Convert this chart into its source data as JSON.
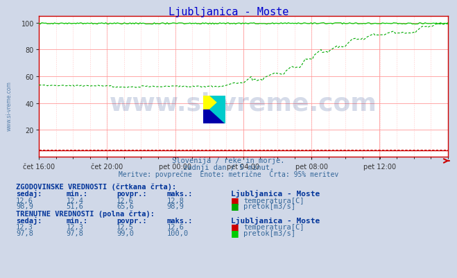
{
  "title": "Ljubljanica - Moste",
  "title_color": "#0000cc",
  "bg_color": "#d0d8e8",
  "plot_bg_color": "#ffffff",
  "x_labels": [
    "čet 16:00",
    "čet 20:00",
    "pet 00:00",
    "pet 04:00",
    "pet 08:00",
    "pet 12:00"
  ],
  "x_ticks_norm": [
    0.0,
    0.1667,
    0.3333,
    0.5,
    0.6667,
    0.8333
  ],
  "ylim": [
    0,
    105
  ],
  "yticks": [
    20,
    40,
    60,
    80,
    100
  ],
  "grid_color_major": "#ff9999",
  "grid_color_minor": "#ffcccc",
  "watermark_text": "www.si-vreme.com",
  "watermark_color": "#1a3a8a",
  "watermark_alpha": 0.18,
  "subtitle1": "Slovenija / reke in morje.",
  "subtitle2": "zadnji dan / 5 minut.",
  "subtitle3": "Meritve: povprečne  Enote: metrične  Črta: 95% meritev",
  "subtitle_color": "#336699",
  "table_text_color": "#336699",
  "table_bold_color": "#003399",
  "legend_station": "Ljubljanica - Moste",
  "temp_color_hist": "#cc0000",
  "temp_color_curr": "#cc0000",
  "flow_color_hist": "#00aa00",
  "flow_color_curr": "#00cc00",
  "red_arrow_color": "#cc0000",
  "axis_color": "#cc0000",
  "temp_hist_sedaj": 12.6,
  "temp_hist_min": 12.4,
  "temp_hist_povpr": 12.6,
  "temp_hist_maks": 12.8,
  "flow_hist_sedaj": 98.9,
  "flow_hist_min": 51.6,
  "flow_hist_povpr": 65.6,
  "flow_hist_maks": 98.9,
  "temp_curr_sedaj": 12.3,
  "temp_curr_min": 12.3,
  "temp_curr_povpr": 12.5,
  "temp_curr_maks": 12.6,
  "flow_curr_sedaj": 97.8,
  "flow_curr_min": 97.8,
  "flow_curr_povpr": 99.0,
  "flow_curr_maks": 100.0,
  "n_points": 288
}
